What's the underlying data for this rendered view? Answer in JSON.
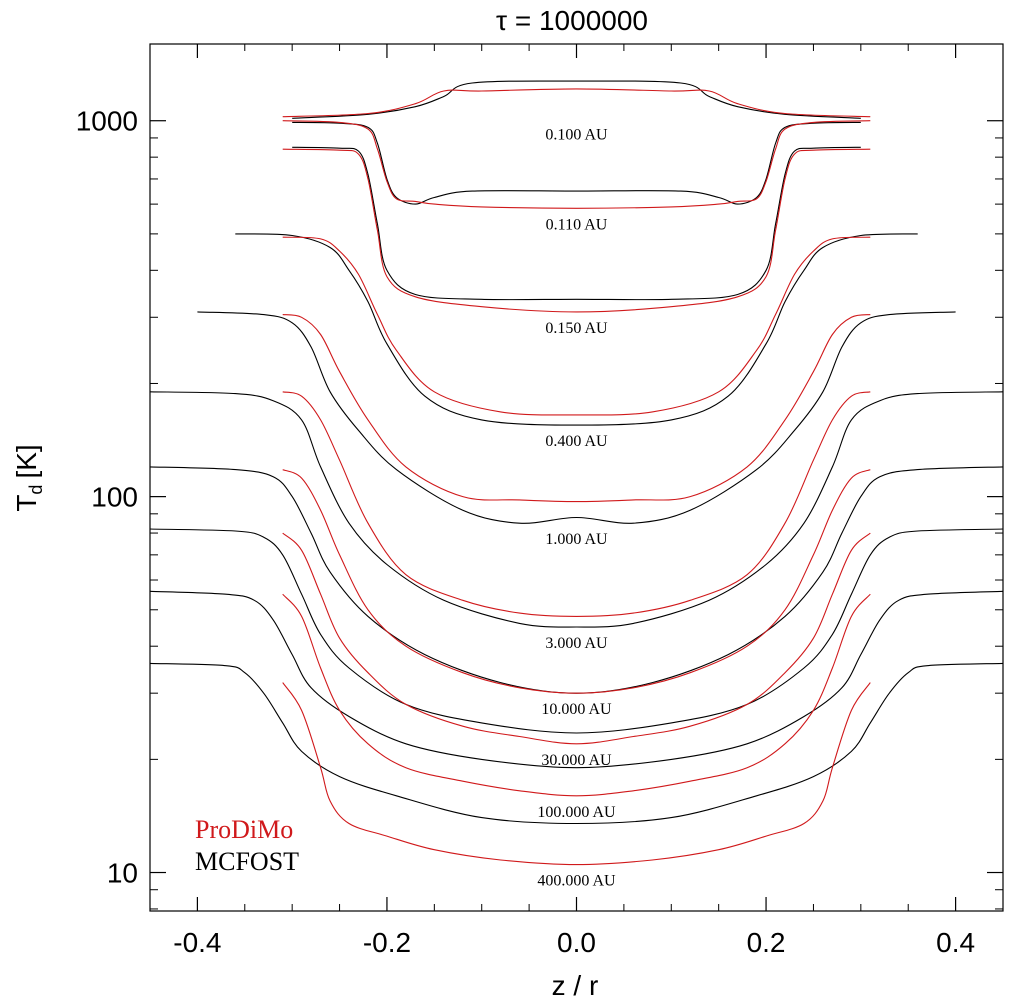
{
  "chart_data": {
    "type": "line",
    "title": "τ = 1000000",
    "xlabel": "z / r",
    "ylabel_main": "T",
    "ylabel_sub": "d",
    "ylabel_unit": "[K]",
    "xlim": [
      -0.45,
      0.45
    ],
    "ylim": [
      7.9,
      1600
    ],
    "yscale": "log",
    "x_ticks": [
      -0.4,
      -0.2,
      0.0,
      0.2,
      0.4
    ],
    "x_tick_labels": [
      "-0.4",
      "-0.2",
      "0.0",
      "0.2",
      "0.4"
    ],
    "y_ticks": [
      10,
      100,
      1000
    ],
    "y_tick_labels": [
      "10",
      "100",
      "1000"
    ],
    "legend": {
      "placement": "bottom-left",
      "entries": [
        {
          "label": "ProDiMo",
          "color": "#d0191b"
        },
        {
          "label": "MCFOST",
          "color": "#000000"
        }
      ]
    },
    "curves": [
      {
        "label": "0.100 AU",
        "mcfost": {
          "x": [
            -0.3,
            -0.22,
            -0.17,
            -0.14,
            -0.11,
            0.0,
            0.11,
            0.14,
            0.17,
            0.22,
            0.3
          ],
          "y": [
            1015,
            1040,
            1090,
            1160,
            1260,
            1275,
            1260,
            1160,
            1090,
            1040,
            1015
          ]
        },
        "prodimo": {
          "x": [
            -0.31,
            -0.22,
            -0.17,
            -0.14,
            -0.1,
            0.0,
            0.1,
            0.14,
            0.17,
            0.22,
            0.31
          ],
          "y": [
            1025,
            1045,
            1110,
            1200,
            1200,
            1215,
            1200,
            1200,
            1110,
            1045,
            1025
          ]
        }
      },
      {
        "label": "0.110 AU",
        "mcfost": {
          "x": [
            -0.3,
            -0.25,
            -0.22,
            -0.21,
            -0.2,
            -0.19,
            -0.17,
            -0.15,
            -0.11,
            0.0,
            0.11,
            0.15,
            0.17,
            0.19,
            0.2,
            0.21,
            0.22,
            0.25,
            0.3
          ],
          "y": [
            990,
            985,
            960,
            870,
            700,
            625,
            600,
            625,
            650,
            650,
            650,
            625,
            600,
            625,
            700,
            870,
            960,
            985,
            990
          ]
        },
        "prodimo": {
          "x": [
            -0.31,
            -0.25,
            -0.22,
            -0.21,
            -0.2,
            -0.19,
            -0.17,
            -0.15,
            -0.1,
            0.0,
            0.1,
            0.15,
            0.17,
            0.19,
            0.2,
            0.21,
            0.22,
            0.25,
            0.31
          ],
          "y": [
            1000,
            990,
            950,
            840,
            690,
            620,
            610,
            600,
            590,
            585,
            590,
            600,
            610,
            620,
            690,
            840,
            950,
            990,
            1000
          ]
        }
      },
      {
        "label": "0.150 AU",
        "mcfost": {
          "x": [
            -0.3,
            -0.25,
            -0.23,
            -0.22,
            -0.21,
            -0.2,
            -0.17,
            -0.1,
            0.0,
            0.1,
            0.17,
            0.2,
            0.21,
            0.22,
            0.23,
            0.25,
            0.3
          ],
          "y": [
            850,
            845,
            830,
            720,
            530,
            400,
            345,
            335,
            335,
            335,
            345,
            400,
            530,
            720,
            830,
            845,
            850
          ]
        },
        "prodimo": {
          "x": [
            -0.31,
            -0.25,
            -0.23,
            -0.22,
            -0.21,
            -0.2,
            -0.17,
            -0.1,
            0.0,
            0.1,
            0.17,
            0.2,
            0.21,
            0.22,
            0.23,
            0.25,
            0.31
          ],
          "y": [
            840,
            835,
            815,
            700,
            510,
            385,
            340,
            320,
            310,
            320,
            340,
            385,
            510,
            700,
            815,
            835,
            840
          ]
        }
      },
      {
        "label": "0.400 AU",
        "mcfost": {
          "x": [
            -0.36,
            -0.3,
            -0.26,
            -0.24,
            -0.22,
            -0.2,
            -0.16,
            -0.1,
            0.0,
            0.1,
            0.16,
            0.2,
            0.22,
            0.24,
            0.26,
            0.3,
            0.36
          ],
          "y": [
            500,
            495,
            460,
            400,
            330,
            255,
            185,
            160,
            155,
            160,
            185,
            255,
            330,
            400,
            460,
            495,
            500
          ]
        },
        "prodimo": {
          "x": [
            -0.31,
            -0.27,
            -0.25,
            -0.23,
            -0.21,
            -0.19,
            -0.15,
            -0.08,
            0.0,
            0.08,
            0.15,
            0.19,
            0.21,
            0.23,
            0.25,
            0.27,
            0.31
          ],
          "y": [
            490,
            485,
            450,
            390,
            305,
            245,
            190,
            168,
            165,
            168,
            190,
            245,
            305,
            390,
            450,
            485,
            490
          ]
        }
      },
      {
        "label": "1.000 AU",
        "mcfost": {
          "x": [
            -0.4,
            -0.33,
            -0.3,
            -0.28,
            -0.26,
            -0.23,
            -0.19,
            -0.12,
            -0.06,
            0.0,
            0.06,
            0.12,
            0.19,
            0.23,
            0.26,
            0.28,
            0.3,
            0.33,
            0.4
          ],
          "y": [
            310,
            305,
            290,
            250,
            190,
            150,
            118,
            92,
            85,
            88,
            85,
            92,
            118,
            150,
            190,
            250,
            290,
            305,
            310
          ]
        },
        "prodimo": {
          "x": [
            -0.31,
            -0.29,
            -0.27,
            -0.25,
            -0.22,
            -0.18,
            -0.12,
            -0.06,
            0.0,
            0.06,
            0.12,
            0.18,
            0.22,
            0.25,
            0.27,
            0.29,
            0.31
          ],
          "y": [
            305,
            300,
            270,
            215,
            160,
            120,
            100,
            98,
            97,
            98,
            100,
            120,
            160,
            215,
            270,
            300,
            305
          ]
        }
      },
      {
        "label": "3.000 AU",
        "mcfost": {
          "x": [
            -0.45,
            -0.36,
            -0.32,
            -0.29,
            -0.27,
            -0.24,
            -0.2,
            -0.14,
            -0.06,
            0.0,
            0.06,
            0.14,
            0.2,
            0.24,
            0.27,
            0.29,
            0.32,
            0.36,
            0.45
          ],
          "y": [
            190,
            188,
            180,
            160,
            120,
            85,
            66,
            53,
            46,
            45,
            46,
            53,
            66,
            85,
            120,
            160,
            180,
            188,
            190
          ]
        },
        "prodimo": {
          "x": [
            -0.31,
            -0.29,
            -0.27,
            -0.25,
            -0.22,
            -0.18,
            -0.12,
            -0.06,
            0.0,
            0.06,
            0.12,
            0.18,
            0.22,
            0.25,
            0.27,
            0.29,
            0.31
          ],
          "y": [
            190,
            185,
            160,
            125,
            85,
            62,
            53,
            49,
            48,
            49,
            53,
            62,
            85,
            125,
            160,
            185,
            190
          ]
        }
      },
      {
        "label": "10.000 AU",
        "mcfost": {
          "x": [
            -0.45,
            -0.36,
            -0.32,
            -0.3,
            -0.28,
            -0.26,
            -0.22,
            -0.16,
            -0.08,
            0.0,
            0.08,
            0.16,
            0.22,
            0.26,
            0.28,
            0.3,
            0.32,
            0.36,
            0.45
          ],
          "y": [
            120,
            118,
            113,
            100,
            80,
            63,
            48,
            38,
            32,
            30,
            32,
            38,
            48,
            63,
            80,
            100,
            113,
            118,
            120
          ]
        },
        "prodimo": {
          "x": [
            -0.31,
            -0.29,
            -0.27,
            -0.25,
            -0.22,
            -0.18,
            -0.12,
            -0.06,
            0.0,
            0.06,
            0.12,
            0.18,
            0.22,
            0.25,
            0.27,
            0.29,
            0.31
          ],
          "y": [
            118,
            112,
            92,
            70,
            50,
            40,
            34,
            31,
            30,
            31,
            34,
            40,
            50,
            70,
            92,
            112,
            118
          ]
        }
      },
      {
        "label": "30.000 AU",
        "mcfost": {
          "x": [
            -0.45,
            -0.36,
            -0.33,
            -0.31,
            -0.29,
            -0.27,
            -0.24,
            -0.18,
            -0.1,
            0.0,
            0.1,
            0.18,
            0.24,
            0.27,
            0.29,
            0.31,
            0.33,
            0.36,
            0.45
          ],
          "y": [
            82,
            81,
            78,
            70,
            55,
            43,
            35,
            28,
            25,
            23.5,
            25,
            28,
            35,
            43,
            55,
            70,
            78,
            81,
            82
          ]
        },
        "prodimo": {
          "x": [
            -0.31,
            -0.29,
            -0.27,
            -0.25,
            -0.22,
            -0.18,
            -0.12,
            -0.06,
            0.0,
            0.06,
            0.12,
            0.18,
            0.22,
            0.25,
            0.27,
            0.29,
            0.31
          ],
          "y": [
            80,
            72,
            55,
            42,
            34,
            28,
            24.5,
            23,
            22,
            23,
            24.5,
            28,
            34,
            42,
            55,
            72,
            80
          ]
        }
      },
      {
        "label": "100.000 AU",
        "mcfost": {
          "x": [
            -0.45,
            -0.37,
            -0.34,
            -0.32,
            -0.3,
            -0.28,
            -0.24,
            -0.18,
            -0.1,
            0.0,
            0.1,
            0.18,
            0.24,
            0.28,
            0.3,
            0.32,
            0.34,
            0.37,
            0.45
          ],
          "y": [
            56,
            55,
            53,
            47,
            38,
            31,
            26,
            22,
            20,
            19,
            20,
            22,
            26,
            31,
            38,
            47,
            53,
            55,
            56
          ]
        },
        "prodimo": {
          "x": [
            -0.31,
            -0.29,
            -0.27,
            -0.25,
            -0.22,
            -0.18,
            -0.12,
            -0.06,
            0.0,
            0.06,
            0.12,
            0.18,
            0.22,
            0.25,
            0.27,
            0.29,
            0.31
          ],
          "y": [
            55,
            48,
            35,
            27,
            22,
            19,
            17.5,
            16.5,
            16,
            16.5,
            17.5,
            19,
            22,
            27,
            35,
            48,
            55
          ]
        }
      },
      {
        "label": "400.000 AU",
        "mcfost": {
          "x": [
            -0.45,
            -0.37,
            -0.35,
            -0.33,
            -0.31,
            -0.29,
            -0.25,
            -0.19,
            -0.1,
            0.0,
            0.1,
            0.19,
            0.25,
            0.29,
            0.31,
            0.33,
            0.35,
            0.37,
            0.45
          ],
          "y": [
            36,
            35.5,
            34,
            30,
            25,
            21,
            18,
            16,
            14,
            13.5,
            14,
            16,
            18,
            21,
            25,
            30,
            34,
            35.5,
            36
          ]
        },
        "prodimo": {
          "x": [
            -0.31,
            -0.29,
            -0.27,
            -0.26,
            -0.24,
            -0.2,
            -0.15,
            -0.08,
            0.0,
            0.08,
            0.15,
            0.2,
            0.24,
            0.26,
            0.27,
            0.29,
            0.31
          ],
          "y": [
            32,
            27,
            19,
            15.5,
            13.5,
            12.5,
            11.5,
            10.8,
            10.5,
            10.8,
            11.5,
            12.5,
            13.5,
            15.5,
            19,
            27,
            32
          ]
        }
      }
    ]
  }
}
